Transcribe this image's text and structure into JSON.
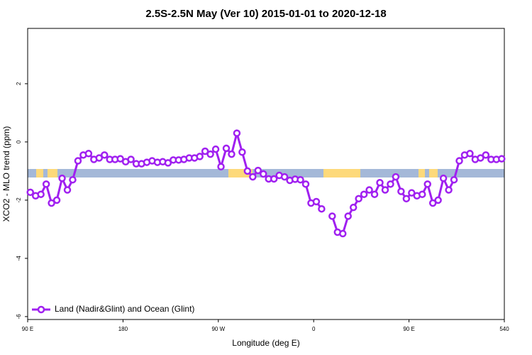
{
  "chart_data": {
    "type": "line",
    "title": "2.5S-2.5N May (Ver 10)   2015-01-01 to 2020-12-18",
    "xlabel": "Longitude (deg E)",
    "ylabel": "XCO2 - MLO trend (ppm)",
    "x": [
      92.5,
      97.5,
      102.5,
      107.5,
      112.5,
      117.5,
      122.5,
      127.5,
      132.5,
      137.5,
      142.5,
      147.5,
      152.5,
      157.5,
      162.5,
      167.5,
      172.5,
      177.5,
      182.5,
      187.5,
      192.5,
      197.5,
      202.5,
      207.5,
      212.5,
      217.5,
      222.5,
      227.5,
      232.5,
      237.5,
      242.5,
      247.5,
      252.5,
      257.5,
      262.5,
      267.5,
      272.5,
      277.5,
      282.5,
      287.5,
      292.5,
      297.5,
      302.5,
      307.5,
      312.5,
      317.5,
      322.5,
      327.5,
      332.5,
      337.5,
      342.5,
      347.5,
      352.5,
      357.5,
      362.5,
      367.5,
      372.5,
      377.5,
      382.5,
      387.5,
      392.5,
      397.5,
      402.5,
      407.5,
      412.5,
      417.5,
      422.5,
      427.5,
      432.5,
      437.5,
      442.5,
      447.5,
      452.5,
      457.5,
      462.5,
      467.5,
      472.5,
      477.5,
      482.5,
      487.5,
      492.5,
      497.5,
      502.5,
      507.5,
      512.5,
      517.5,
      522.5,
      527.5,
      532.5,
      537.5
    ],
    "series": [
      {
        "name": "Land (Nadir&Glint) and Ocean (Glint)",
        "color": "#a020f0",
        "values": [
          -1.73,
          -1.85,
          -1.8,
          -1.45,
          -2.1,
          -2.0,
          -1.25,
          -1.65,
          -1.3,
          -0.65,
          -0.45,
          -0.4,
          -0.6,
          -0.55,
          -0.45,
          -0.6,
          -0.6,
          -0.58,
          -0.68,
          -0.6,
          -0.75,
          -0.75,
          -0.7,
          -0.65,
          -0.7,
          -0.68,
          -0.72,
          -0.62,
          -0.62,
          -0.6,
          -0.55,
          -0.55,
          -0.5,
          -0.32,
          -0.42,
          -0.25,
          -0.85,
          -0.22,
          -0.42,
          0.3,
          -0.35,
          -1.0,
          -1.2,
          -0.98,
          -1.1,
          -1.27,
          -1.27,
          -1.15,
          -1.2,
          -1.32,
          -1.28,
          -1.3,
          -1.45,
          -2.1,
          -2.05,
          -2.3,
          null,
          -2.55,
          -3.1,
          -3.15,
          -2.55,
          -2.25,
          -1.95,
          -1.8,
          -1.65,
          -1.8,
          -1.4,
          -1.65,
          -1.45,
          -1.2,
          -1.7,
          -1.95,
          -1.75,
          -1.85,
          -1.8,
          -1.45,
          -2.1,
          -2.0,
          -1.25,
          -1.65,
          -1.3,
          -0.65,
          -0.45,
          -0.4,
          -0.6,
          -0.55,
          -0.45,
          -0.6,
          -0.6,
          -0.58
        ]
      }
    ],
    "xlim": [
      90,
      540
    ],
    "xticks": [
      {
        "value": 90,
        "label": "90 E"
      },
      180,
      {
        "value": 270,
        "label": "90 W"
      },
      {
        "value": 360,
        "label": "0"
      },
      {
        "value": 450,
        "label": "90 E"
      },
      540
    ],
    "ylim": [
      -6.1,
      3.9
    ],
    "yticks": [
      -6,
      -4,
      -2,
      0,
      2
    ],
    "legend": "bottomleft"
  }
}
